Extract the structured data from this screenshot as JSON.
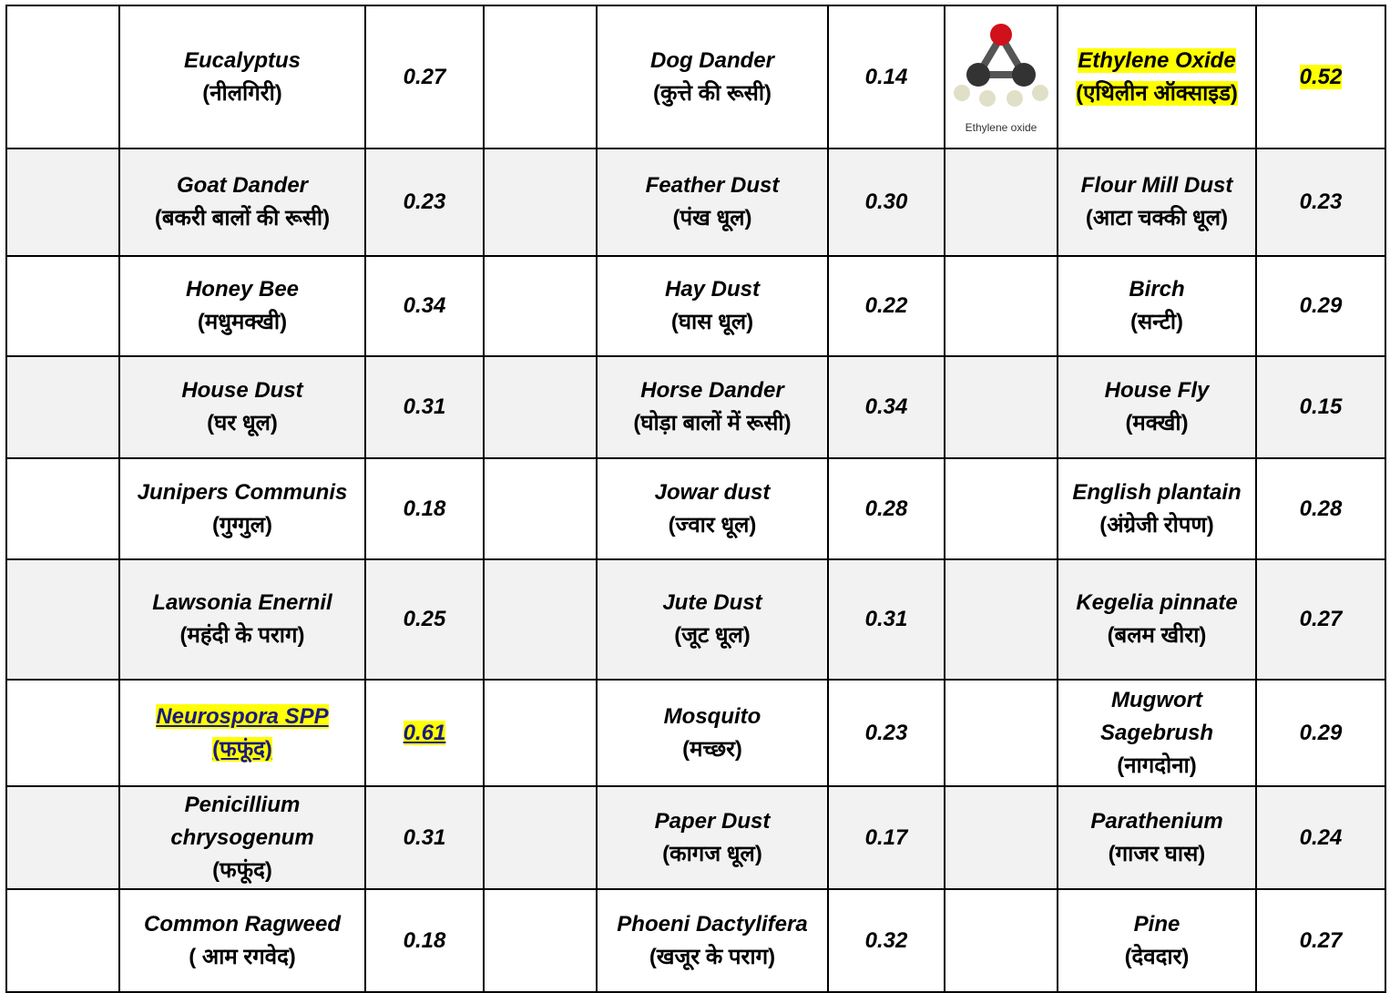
{
  "table": {
    "rows": [
      [
        {
          "name": "Eucalyptus",
          "hindi": "(नीलगिरी)",
          "value": "0.27"
        },
        {
          "name": "Dog Dander",
          "hindi": "(कुत्ते की रूसी)",
          "value": "0.14"
        },
        {
          "name": "Ethylene Oxide",
          "hindi": "(एथिलीन ऑक्साइड)",
          "value": "0.52",
          "highlight": true,
          "image_caption": "Ethylene oxide"
        }
      ],
      [
        {
          "name": "Goat Dander",
          "hindi": "(बकरी बालों की रूसी)",
          "value": "0.23"
        },
        {
          "name": "Feather Dust",
          "hindi": "(पंख धूल)",
          "value": "0.30"
        },
        {
          "name": "Flour Mill Dust",
          "hindi": "(आटा चक्की धूल)",
          "value": "0.23"
        }
      ],
      [
        {
          "name": "Honey Bee",
          "hindi": "(मधुमक्खी)",
          "value": "0.34"
        },
        {
          "name": "Hay Dust",
          "hindi": "(घास धूल)",
          "value": "0.22"
        },
        {
          "name": "Birch",
          "hindi": "(सन्टी)",
          "value": "0.29"
        }
      ],
      [
        {
          "name": "House Dust",
          "hindi": "(घर धूल)",
          "value": "0.31"
        },
        {
          "name": "Horse Dander",
          "hindi": "(घोड़ा बालों में रूसी)",
          "value": "0.34"
        },
        {
          "name": "House Fly",
          "hindi": "(मक्खी)",
          "value": "0.15"
        }
      ],
      [
        {
          "name": "Junipers Communis",
          "hindi": "(गुग्गुल)",
          "value": "0.18"
        },
        {
          "name": "Jowar dust",
          "hindi": "(ज्वार धूल)",
          "value": "0.28"
        },
        {
          "name": "English plantain",
          "hindi": "(अंग्रेजी रोपण)",
          "value": "0.28"
        }
      ],
      [
        {
          "name": "Lawsonia Enernil",
          "hindi": "(महंदी के पराग)",
          "value": "0.25"
        },
        {
          "name": "Jute Dust",
          "hindi": "(जूट धूल)",
          "value": "0.31"
        },
        {
          "name": "Kegelia pinnate",
          "hindi": "(बलम खीरा)",
          "value": "0.27"
        }
      ],
      [
        {
          "name": "Neurospora SPP",
          "hindi": "(फफूंद)",
          "value": "0.61",
          "highlight": true
        },
        {
          "name": "Mosquito",
          "hindi": "(मच्छर)",
          "value": "0.23"
        },
        {
          "name": "Mugwort Sagebrush",
          "hindi": "(नागदोना)",
          "value": "0.29"
        }
      ],
      [
        {
          "name": "Penicillium chrysogenum",
          "hindi": "(फफूंद)",
          "value": "0.31"
        },
        {
          "name": "Paper Dust",
          "hindi": "(कागज धूल)",
          "value": "0.17"
        },
        {
          "name": "Parathenium",
          "hindi": "(गाजर घास)",
          "value": "0.24"
        }
      ],
      [
        {
          "name": "Common Ragweed",
          "hindi": "( आम रगवेद)",
          "value": "0.18"
        },
        {
          "name": "Phoeni Dactylifera",
          "hindi": "(खजूर के पराग)",
          "value": "0.32"
        },
        {
          "name": "Pine",
          "hindi": "(देवदार)",
          "value": "0.27"
        }
      ]
    ]
  }
}
